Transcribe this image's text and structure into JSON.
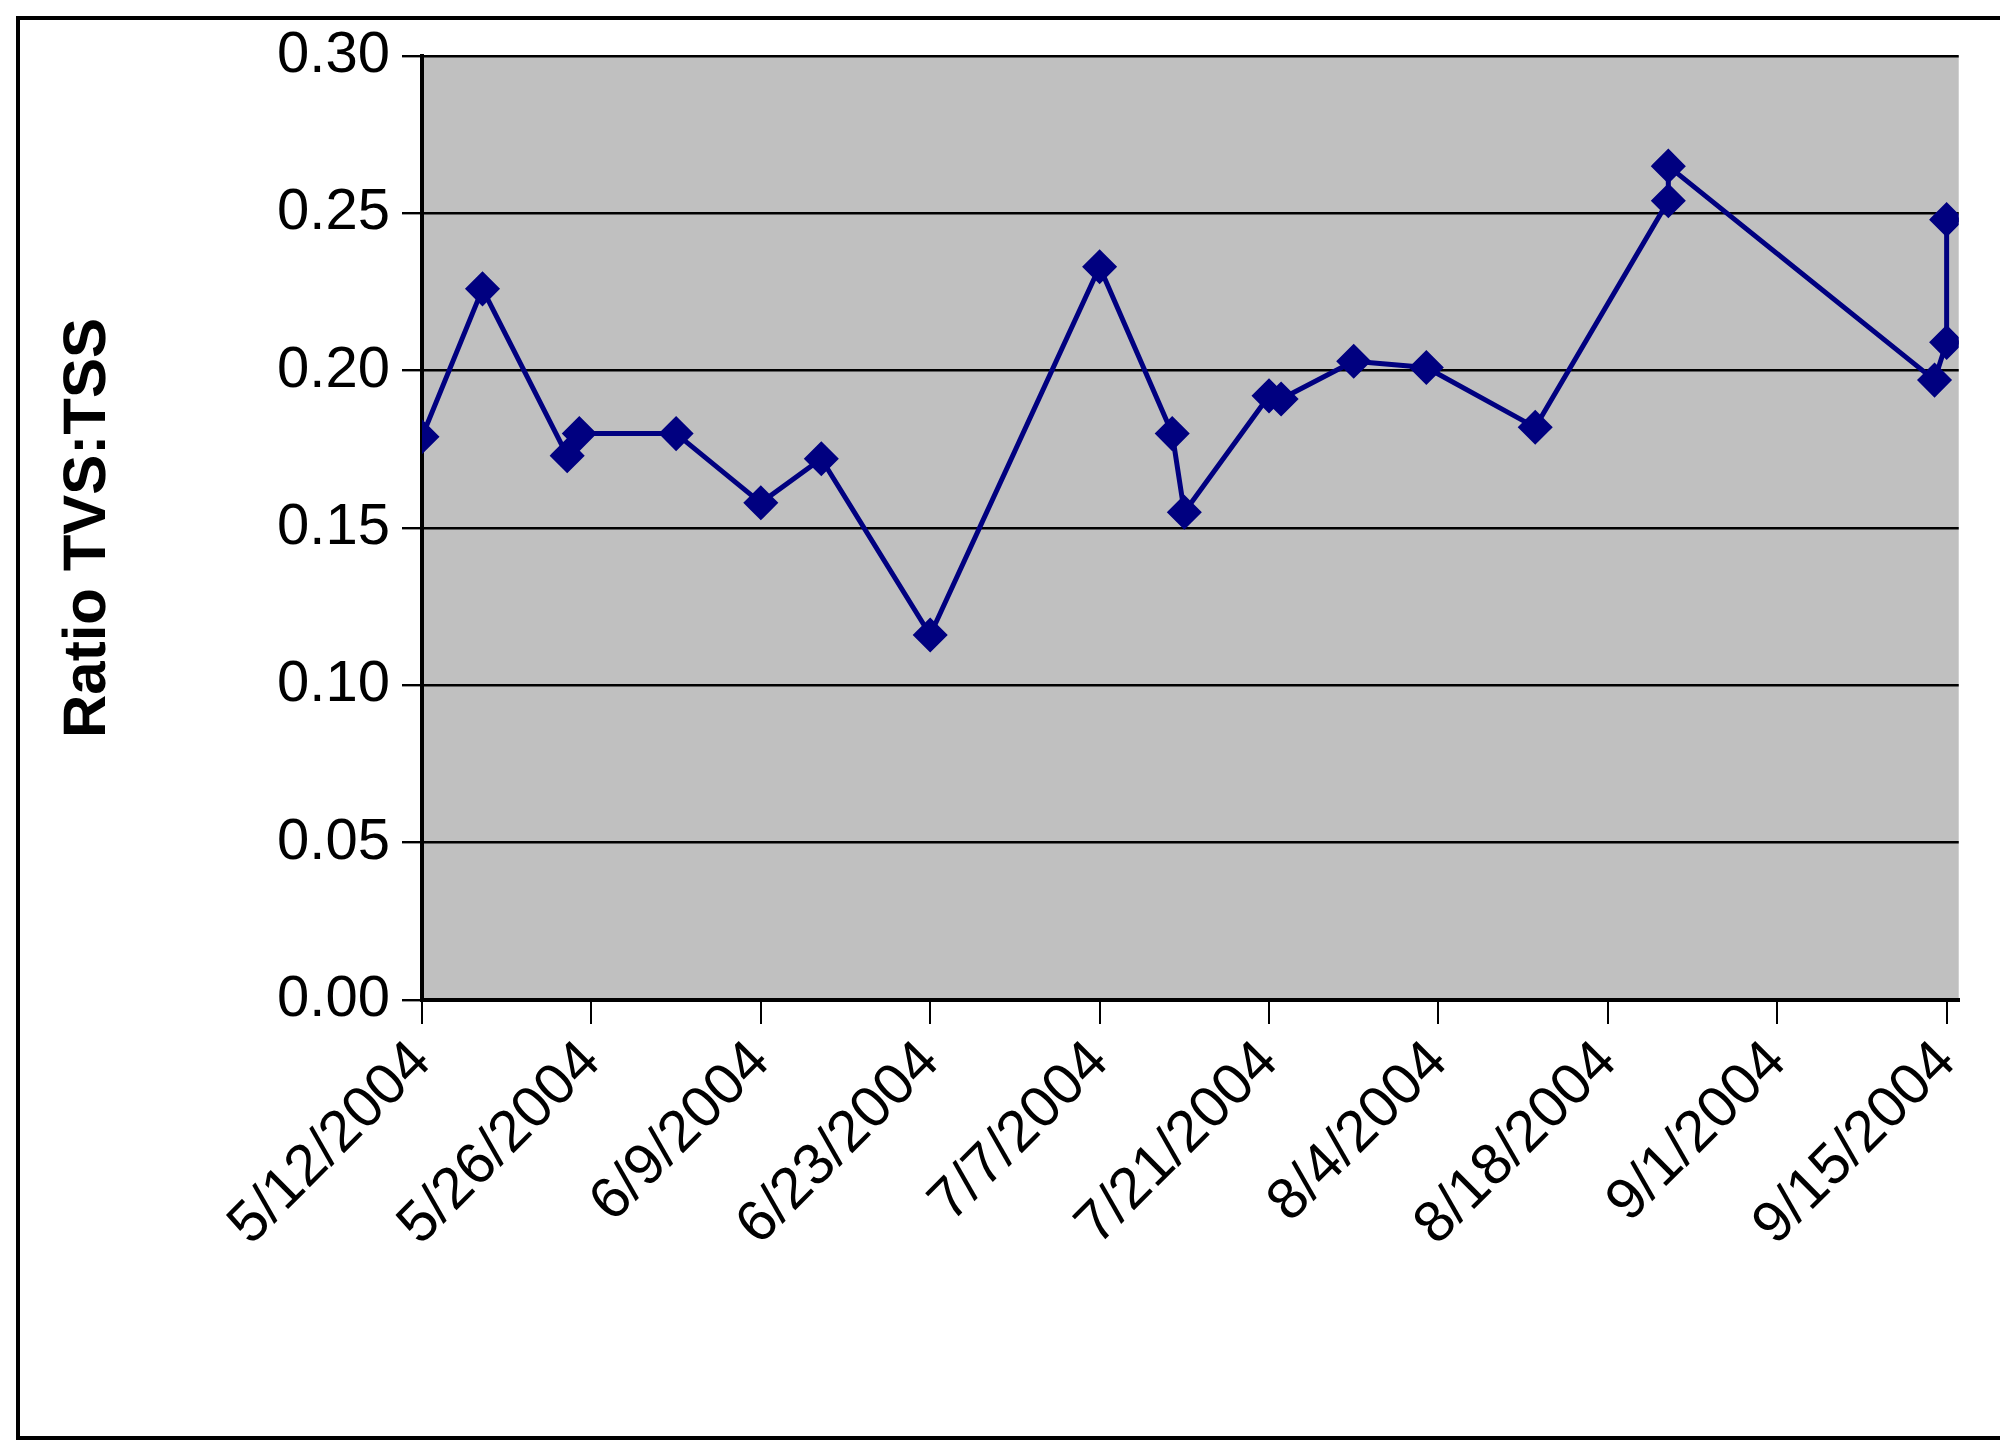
{
  "chart_data": {
    "type": "line",
    "ylabel": "Ratio TVS:TSS",
    "x": [
      "2004-05-12",
      "2004-05-17",
      "2004-05-24",
      "2004-05-25",
      "2004-06-02",
      "2004-06-09",
      "2004-06-14",
      "2004-06-23",
      "2004-07-07",
      "2004-07-13",
      "2004-07-14",
      "2004-07-21",
      "2004-07-22",
      "2004-07-28",
      "2004-08-03",
      "2004-08-12",
      "2004-08-23",
      "2004-08-23",
      "2004-09-14",
      "2004-09-15",
      "2004-09-15"
    ],
    "series": [
      {
        "color": "#000080",
        "values": [
          0.179,
          0.226,
          0.173,
          0.18,
          0.18,
          0.158,
          0.172,
          0.116,
          0.233,
          0.18,
          0.155,
          0.192,
          0.191,
          0.203,
          0.201,
          0.182,
          0.254,
          0.265,
          0.197,
          0.209,
          0.248
        ]
      }
    ],
    "xlim": [
      "2004-05-12",
      "2004-09-16"
    ],
    "xticks": [
      {
        "value": "2004-05-12",
        "label": "5/12/2004"
      },
      {
        "value": "2004-05-26",
        "label": "5/26/2004"
      },
      {
        "value": "2004-06-09",
        "label": "6/9/2004"
      },
      {
        "value": "2004-06-23",
        "label": "6/23/2004"
      },
      {
        "value": "2004-07-07",
        "label": "7/7/2004"
      },
      {
        "value": "2004-07-21",
        "label": "7/21/2004"
      },
      {
        "value": "2004-08-04",
        "label": "8/4/2004"
      },
      {
        "value": "2004-08-18",
        "label": "8/18/2004"
      },
      {
        "value": "2004-09-01",
        "label": "9/1/2004"
      },
      {
        "value": "2004-09-15",
        "label": "9/15/2004"
      }
    ],
    "ylim": [
      0,
      0.3
    ],
    "yticks": [
      {
        "value": 0,
        "label": "0.00"
      },
      {
        "value": 0.05,
        "label": "0.05"
      },
      {
        "value": 0.1,
        "label": "0.10"
      },
      {
        "value": 0.15,
        "label": "0.15"
      },
      {
        "value": 0.2,
        "label": "0.20"
      },
      {
        "value": 0.25,
        "label": "0.25"
      },
      {
        "value": 0.3,
        "label": "0.30"
      }
    ],
    "grid": "y",
    "legend": false,
    "marker": "diamond",
    "line_style": "solid"
  }
}
